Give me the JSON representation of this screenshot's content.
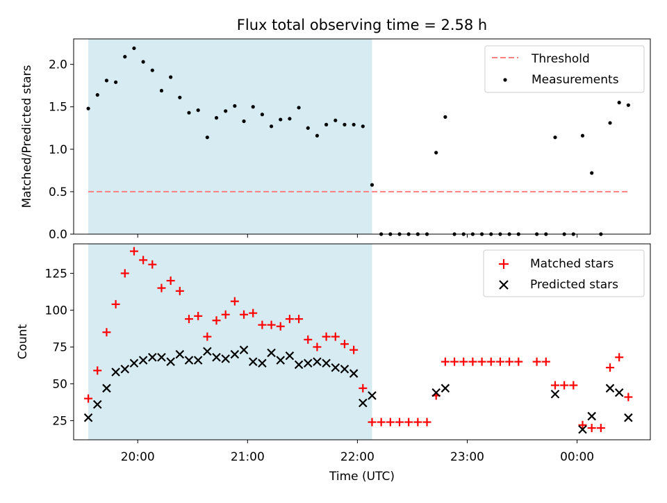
{
  "figure": {
    "title": "Flux total observing time = 2.58 h"
  },
  "chart_data": [
    {
      "type": "scatter",
      "ylabel": "Matched/Predicted stars",
      "xlim": [
        "19:25",
        "00:40"
      ],
      "ylim": [
        0,
        2.3
      ],
      "yticks": [
        "0.0",
        "0.5",
        "1.0",
        "1.5",
        "2.0"
      ],
      "ytick_values": [
        0,
        0.5,
        1.0,
        1.5,
        2.0
      ],
      "shaded_span": [
        "19:33",
        "22:08"
      ],
      "shade_color": "#add8e6",
      "threshold": {
        "name": "Threshold",
        "y": 0.5,
        "x_range": [
          "19:33",
          "00:28"
        ],
        "color": "#ff7f7f",
        "style": "dashed"
      },
      "legend": {
        "placement": "upper right",
        "entries": [
          "Threshold",
          "Measurements"
        ]
      },
      "series": [
        {
          "name": "Measurements",
          "color": "#000000",
          "x": [
            "19:33",
            "19:38",
            "19:43",
            "19:48",
            "19:53",
            "19:58",
            "20:03",
            "20:08",
            "20:13",
            "20:18",
            "20:23",
            "20:28",
            "20:33",
            "20:38",
            "20:43",
            "20:48",
            "20:53",
            "20:58",
            "21:03",
            "21:08",
            "21:13",
            "21:18",
            "21:23",
            "21:28",
            "21:33",
            "21:38",
            "21:43",
            "21:48",
            "21:53",
            "21:58",
            "22:03",
            "22:08",
            "22:13",
            "22:18",
            "22:23",
            "22:28",
            "22:33",
            "22:38",
            "22:43",
            "22:48",
            "22:53",
            "22:58",
            "23:03",
            "23:08",
            "23:13",
            "23:18",
            "23:23",
            "23:28",
            "23:38",
            "23:43",
            "23:48",
            "23:53",
            "23:58",
            "00:03",
            "00:08",
            "00:13",
            "00:18",
            "00:23",
            "00:28"
          ],
          "y": [
            1.48,
            1.64,
            1.81,
            1.79,
            2.09,
            2.19,
            2.03,
            1.93,
            1.69,
            1.85,
            1.61,
            1.43,
            1.46,
            1.14,
            1.37,
            1.45,
            1.51,
            1.33,
            1.5,
            1.41,
            1.27,
            1.35,
            1.36,
            1.49,
            1.25,
            1.16,
            1.29,
            1.34,
            1.29,
            1.29,
            1.27,
            0.58,
            0,
            0,
            0,
            0,
            0,
            0,
            0.96,
            1.38,
            0,
            0,
            0,
            0,
            0,
            0,
            0,
            0,
            0,
            0,
            1.14,
            0,
            0,
            1.16,
            0.72,
            0,
            1.31,
            1.55,
            1.52
          ]
        }
      ]
    },
    {
      "type": "scatter",
      "xlabel": "Time (UTC)",
      "ylabel": "Count",
      "xlim": [
        "19:25",
        "00:40"
      ],
      "ylim": [
        12,
        145
      ],
      "yticks": [
        "25",
        "50",
        "75",
        "100",
        "125"
      ],
      "ytick_values": [
        25,
        50,
        75,
        100,
        125
      ],
      "xticks": [
        "20:00",
        "21:00",
        "22:00",
        "23:00",
        "00:00"
      ],
      "shaded_span": [
        "19:33",
        "22:08"
      ],
      "shade_color": "#add8e6",
      "legend": {
        "placement": "upper right",
        "entries": [
          "Matched stars",
          "Predicted stars"
        ]
      },
      "series": [
        {
          "name": "Matched stars",
          "marker": "plus",
          "color": "#ff0000",
          "x": [
            "19:33",
            "19:38",
            "19:43",
            "19:48",
            "19:53",
            "19:58",
            "20:03",
            "20:08",
            "20:13",
            "20:18",
            "20:23",
            "20:28",
            "20:33",
            "20:38",
            "20:43",
            "20:48",
            "20:53",
            "20:58",
            "21:03",
            "21:08",
            "21:13",
            "21:18",
            "21:23",
            "21:28",
            "21:33",
            "21:38",
            "21:43",
            "21:48",
            "21:53",
            "21:58",
            "22:03",
            "22:08",
            "22:13",
            "22:18",
            "22:23",
            "22:28",
            "22:33",
            "22:38",
            "22:43",
            "22:48",
            "22:53",
            "22:58",
            "23:03",
            "23:08",
            "23:13",
            "23:18",
            "23:23",
            "23:28",
            "23:38",
            "23:43",
            "23:48",
            "23:53",
            "23:58",
            "00:03",
            "00:08",
            "00:13",
            "00:18",
            "00:23",
            "00:28"
          ],
          "y": [
            40,
            59,
            85,
            104,
            125,
            140,
            134,
            131,
            115,
            120,
            113,
            94,
            96,
            82,
            93,
            97,
            106,
            97,
            98,
            90,
            90,
            89,
            94,
            94,
            80,
            75,
            82,
            82,
            77,
            73,
            47,
            24,
            24,
            24,
            24,
            24,
            24,
            24,
            42,
            65,
            65,
            65,
            65,
            65,
            65,
            65,
            65,
            65,
            65,
            65,
            49,
            49,
            49,
            22,
            20,
            20,
            61,
            68,
            41
          ]
        },
        {
          "name": "Predicted stars",
          "marker": "x",
          "color": "#000000",
          "x": [
            "19:33",
            "19:38",
            "19:43",
            "19:48",
            "19:53",
            "19:58",
            "20:03",
            "20:08",
            "20:13",
            "20:18",
            "20:23",
            "20:28",
            "20:33",
            "20:38",
            "20:43",
            "20:48",
            "20:53",
            "20:58",
            "21:03",
            "21:08",
            "21:13",
            "21:18",
            "21:23",
            "21:28",
            "21:33",
            "21:38",
            "21:43",
            "21:48",
            "21:53",
            "21:58",
            "22:03",
            "22:08",
            "22:43",
            "22:48",
            "23:48",
            "00:03",
            "00:08",
            "00:18",
            "00:23",
            "00:28"
          ],
          "y": [
            27,
            36,
            47,
            58,
            60,
            64,
            66,
            68,
            68,
            65,
            70,
            66,
            66,
            72,
            68,
            67,
            70,
            73,
            65,
            64,
            71,
            66,
            69,
            63,
            64,
            65,
            64,
            61,
            60,
            57,
            37,
            42,
            44,
            47,
            43,
            19,
            28,
            47,
            44,
            27
          ]
        }
      ]
    }
  ]
}
